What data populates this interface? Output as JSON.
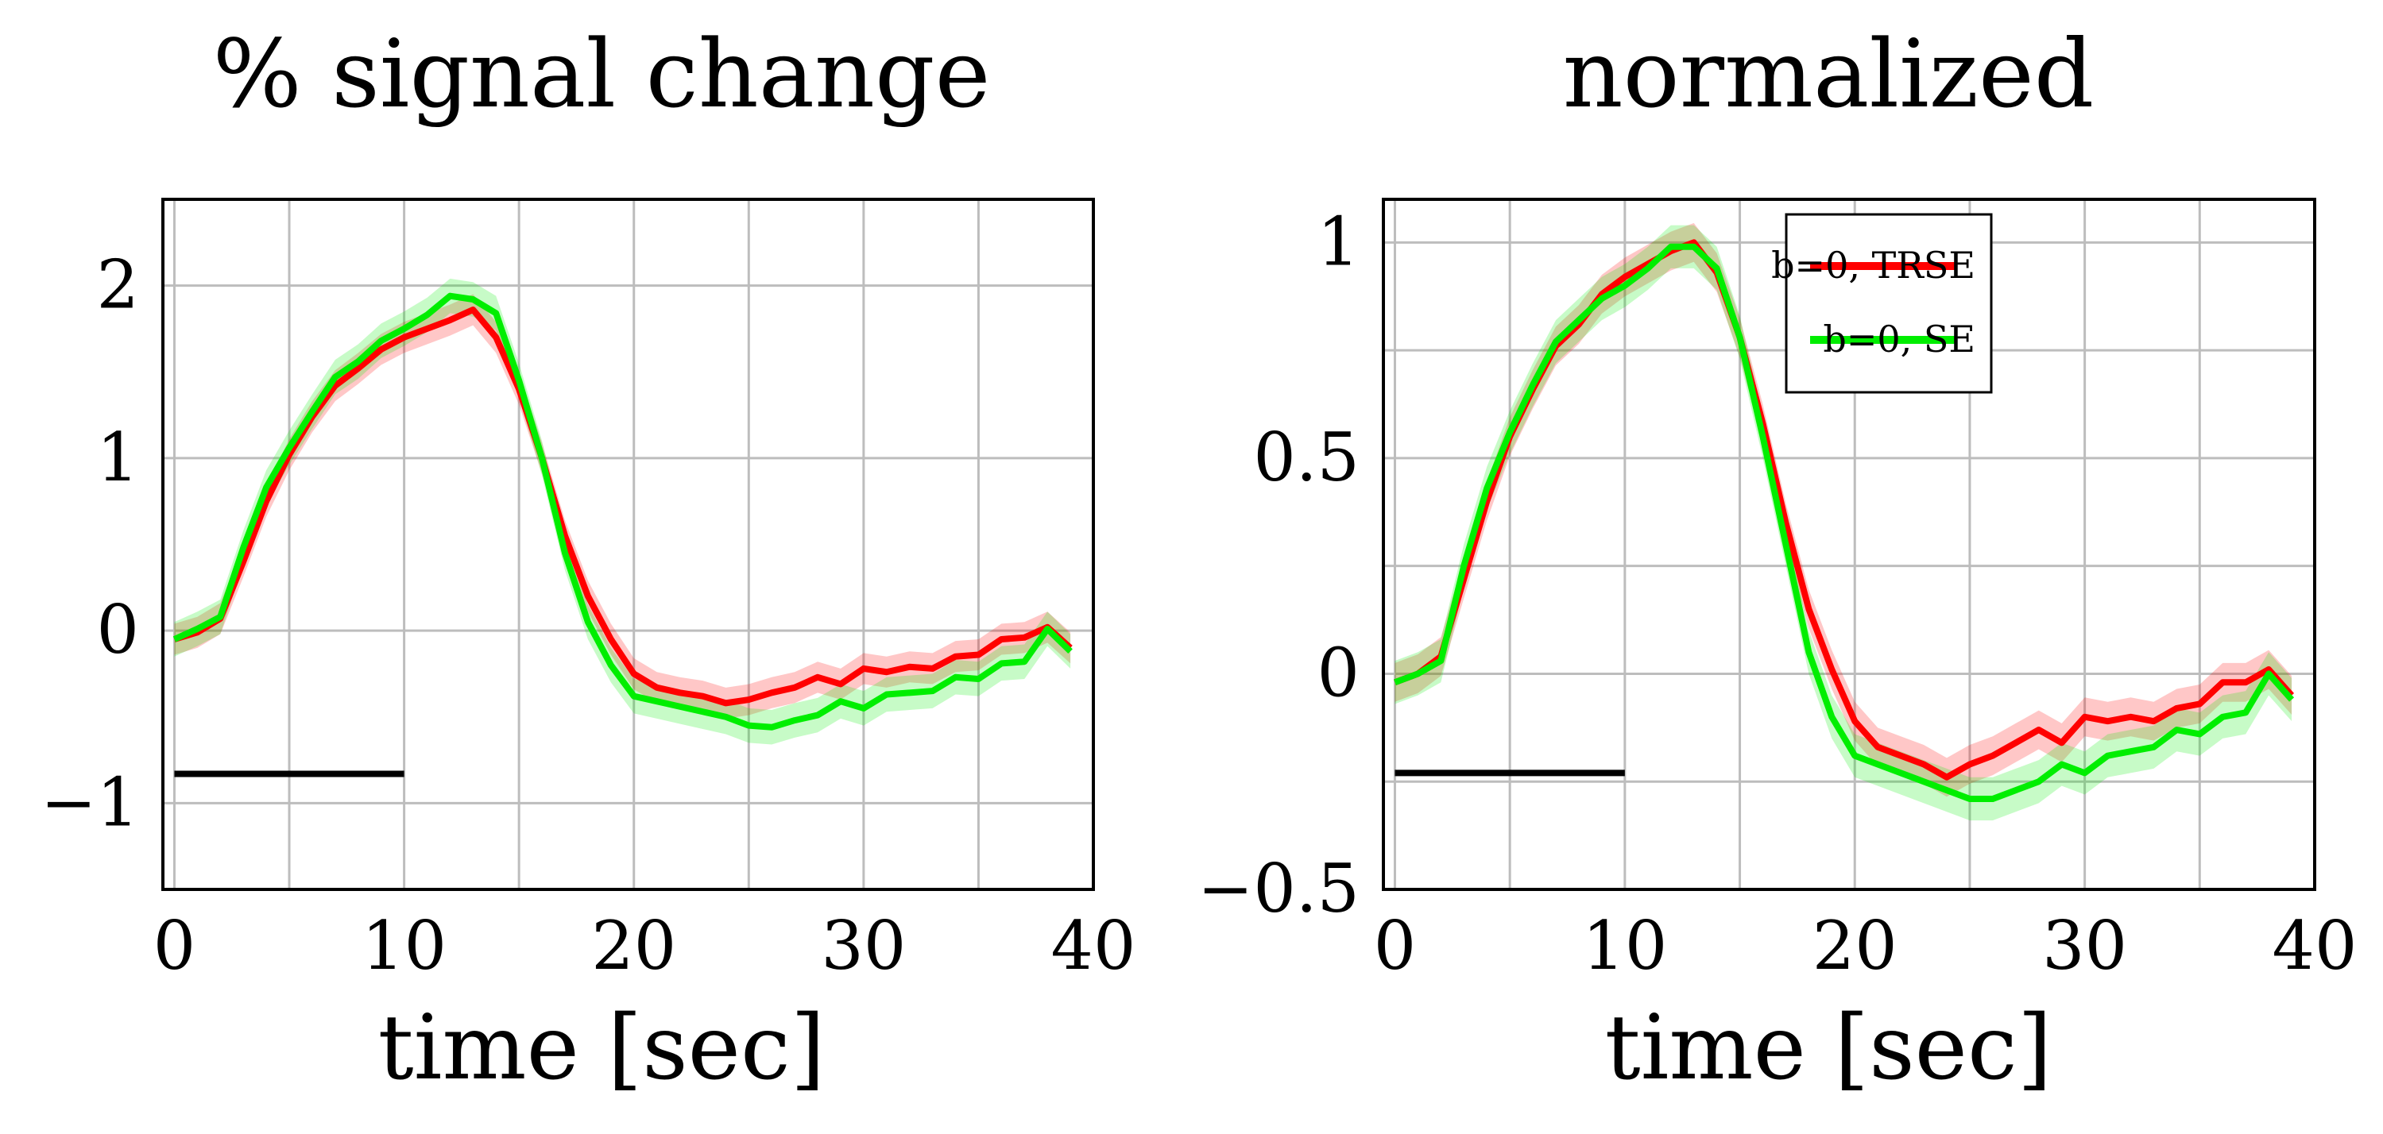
{
  "chart_data": [
    {
      "type": "line",
      "title": "% signal change",
      "xlabel": "time [sec]",
      "ylabel": "",
      "xlim": [
        -0.5,
        40
      ],
      "ylim": [
        -1.5,
        2.5
      ],
      "xticks": [
        0,
        10,
        20,
        30,
        40
      ],
      "xtick_labels": [
        "0",
        "10",
        "20",
        "30",
        "40"
      ],
      "yticks": [
        -1,
        0,
        1,
        2
      ],
      "ytick_labels": [
        "−1",
        "0",
        "1",
        "2"
      ],
      "grid": true,
      "stimulus_bar": {
        "x": [
          0,
          10
        ],
        "y": -0.83
      },
      "x": [
        0,
        1,
        2,
        3,
        4,
        5,
        6,
        7,
        8,
        9,
        10,
        11,
        12,
        13,
        14,
        15,
        16,
        17,
        18,
        19,
        20,
        21,
        22,
        23,
        24,
        25,
        26,
        27,
        28,
        29,
        30,
        31,
        32,
        33,
        34,
        35,
        36,
        37,
        38,
        39
      ],
      "series": [
        {
          "name": "b=0, TRSE",
          "color": "#ff0000",
          "values": [
            -0.05,
            -0.01,
            0.07,
            0.4,
            0.75,
            1.02,
            1.24,
            1.42,
            1.52,
            1.63,
            1.7,
            1.75,
            1.8,
            1.86,
            1.7,
            1.4,
            1.0,
            0.55,
            0.2,
            -0.05,
            -0.25,
            -0.33,
            -0.36,
            -0.38,
            -0.42,
            -0.4,
            -0.36,
            -0.33,
            -0.27,
            -0.31,
            -0.22,
            -0.24,
            -0.21,
            -0.22,
            -0.15,
            -0.14,
            -0.05,
            -0.04,
            0.02,
            -0.1
          ],
          "band": 0.09
        },
        {
          "name": "b=0, SE",
          "color": "#00ee00",
          "values": [
            -0.05,
            0.01,
            0.08,
            0.48,
            0.83,
            1.06,
            1.27,
            1.47,
            1.56,
            1.68,
            1.75,
            1.83,
            1.94,
            1.92,
            1.84,
            1.45,
            1.0,
            0.45,
            0.05,
            -0.2,
            -0.38,
            -0.41,
            -0.44,
            -0.47,
            -0.5,
            -0.55,
            -0.56,
            -0.52,
            -0.49,
            -0.41,
            -0.45,
            -0.37,
            -0.36,
            -0.35,
            -0.27,
            -0.28,
            -0.19,
            -0.18,
            0.01,
            -0.12
          ],
          "band": 0.1
        }
      ]
    },
    {
      "type": "line",
      "title": "normalized",
      "xlabel": "time [sec]",
      "ylabel": "",
      "xlim": [
        -0.5,
        40
      ],
      "ylim": [
        -0.5,
        1.1
      ],
      "xticks": [
        0,
        10,
        20,
        30,
        40
      ],
      "xtick_labels": [
        "0",
        "10",
        "20",
        "30",
        "40"
      ],
      "yticks": [
        -0.5,
        -0.25,
        0,
        0.25,
        0.5,
        0.75,
        1
      ],
      "ytick_labels": [
        "−0.5",
        "",
        "0",
        "",
        "0.5",
        "",
        "1"
      ],
      "grid": true,
      "legend": {
        "position": "top-right",
        "entries": [
          "b=0, TRSE",
          "b=0, SE"
        ]
      },
      "stimulus_bar": {
        "x": [
          0,
          10
        ],
        "y": -0.23
      },
      "x": [
        0,
        1,
        2,
        3,
        4,
        5,
        6,
        7,
        8,
        9,
        10,
        11,
        12,
        13,
        14,
        15,
        16,
        17,
        18,
        19,
        20,
        21,
        22,
        23,
        24,
        25,
        26,
        27,
        28,
        29,
        30,
        31,
        32,
        33,
        34,
        35,
        36,
        37,
        38,
        39
      ],
      "series": [
        {
          "name": "b=0, TRSE",
          "color": "#ff0000",
          "values": [
            -0.02,
            0.0,
            0.04,
            0.22,
            0.4,
            0.55,
            0.66,
            0.76,
            0.81,
            0.88,
            0.92,
            0.95,
            0.98,
            1.0,
            0.93,
            0.78,
            0.58,
            0.35,
            0.15,
            0.01,
            -0.11,
            -0.17,
            -0.19,
            -0.21,
            -0.24,
            -0.21,
            -0.19,
            -0.16,
            -0.13,
            -0.16,
            -0.1,
            -0.11,
            -0.1,
            -0.11,
            -0.08,
            -0.07,
            -0.02,
            -0.02,
            0.01,
            -0.05
          ],
          "band": 0.045
        },
        {
          "name": "b=0, SE",
          "color": "#00ee00",
          "values": [
            -0.02,
            0.0,
            0.03,
            0.25,
            0.43,
            0.56,
            0.67,
            0.77,
            0.82,
            0.87,
            0.9,
            0.94,
            0.99,
            0.99,
            0.94,
            0.78,
            0.55,
            0.3,
            0.05,
            -0.1,
            -0.19,
            -0.21,
            -0.23,
            -0.25,
            -0.27,
            -0.29,
            -0.29,
            -0.27,
            -0.25,
            -0.21,
            -0.23,
            -0.19,
            -0.18,
            -0.17,
            -0.13,
            -0.14,
            -0.1,
            -0.09,
            0.0,
            -0.06
          ],
          "band": 0.05
        }
      ]
    }
  ]
}
